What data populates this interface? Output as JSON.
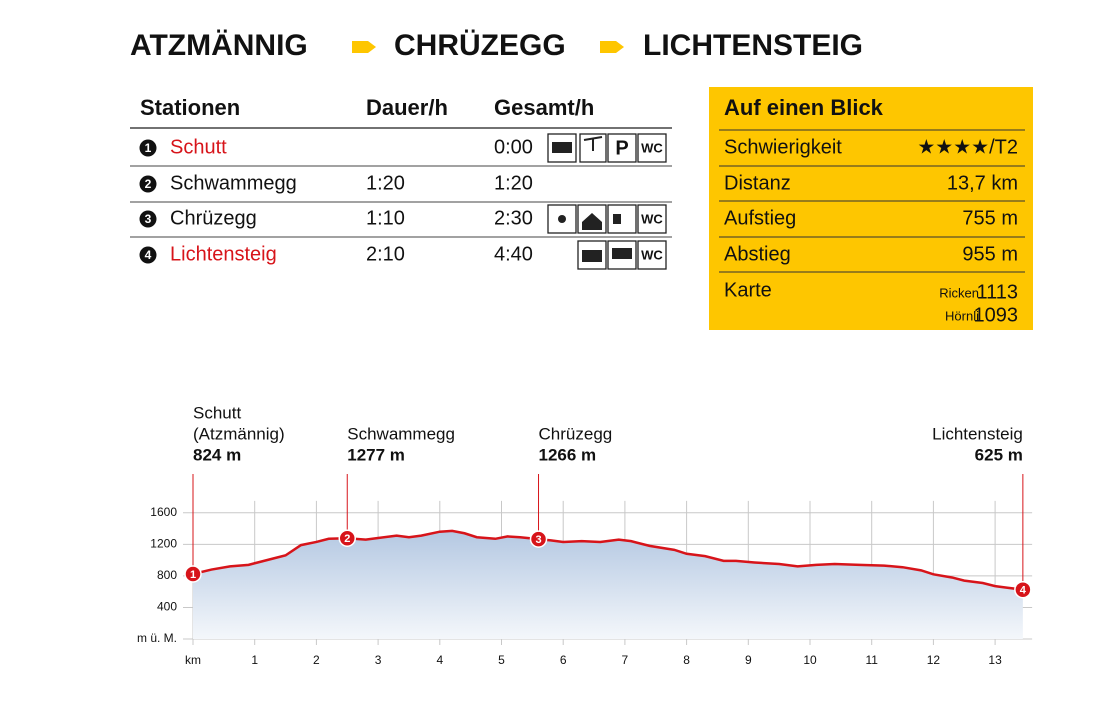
{
  "header": {
    "title_parts": [
      "ATZMÄNNIG",
      "CHRÜZEGG",
      "LICHTENSTEIG"
    ]
  },
  "table": {
    "columns": [
      "Stationen",
      "Dauer/h",
      "Gesamt/h"
    ],
    "rows": [
      {
        "number": "1",
        "name": "Schutt",
        "color": "#d7141a",
        "gesamt": "0:00",
        "icons": [
          "P",
          "WC"
        ]
      },
      {
        "number": "2",
        "name": "Schwammegg",
        "color": "#111111",
        "dauer": "1:20",
        "gesamt": "1:20"
      },
      {
        "number": "3",
        "name": "Chrüzegg",
        "color": "#111111",
        "dauer": "1:10",
        "gesamt": "2:30",
        "icons": [
          "WC"
        ]
      },
      {
        "number": "4",
        "name": "Lichtensteig",
        "color": "#d7141a",
        "dauer": "2:10",
        "gesamt": "4:40",
        "icons": [
          "WC"
        ]
      }
    ]
  },
  "glance": {
    "title": "Auf einen Blick",
    "color": "#fec600",
    "rows": [
      [
        "Schwierigkeit",
        "★★★★/T2"
      ],
      [
        "Distanz",
        "13,7 km"
      ],
      [
        "Aufstieg",
        "755 m"
      ],
      [
        "Abstieg",
        "955 m"
      ]
    ],
    "map": {
      "label": "Karte",
      "sheets": [
        [
          "Ricken",
          "1113"
        ],
        [
          "Hörnli",
          "1093"
        ]
      ]
    }
  },
  "chart_data": {
    "type": "line",
    "fill": "area",
    "color": "#d7141a",
    "grid": true,
    "x": [
      0,
      0.3,
      0.6,
      0.9,
      1.0,
      1.3,
      1.5,
      1.75,
      2.0,
      2.2,
      2.5,
      2.8,
      3.0,
      3.3,
      3.5,
      3.7,
      4.0,
      4.2,
      4.4,
      4.6,
      4.9,
      5.1,
      5.3,
      5.6,
      5.8,
      6.0,
      6.3,
      6.6,
      6.9,
      7.1,
      7.4,
      7.8,
      8.0,
      8.3,
      8.6,
      8.8,
      9.1,
      9.5,
      9.8,
      10.1,
      10.4,
      10.8,
      11.2,
      11.5,
      11.8,
      12.0,
      12.3,
      12.5,
      12.8,
      13.0,
      13.2,
      13.45
    ],
    "values": [
      824,
      880,
      920,
      940,
      960,
      1020,
      1060,
      1190,
      1230,
      1270,
      1277,
      1260,
      1280,
      1310,
      1290,
      1310,
      1360,
      1370,
      1340,
      1290,
      1270,
      1300,
      1290,
      1266,
      1250,
      1230,
      1240,
      1230,
      1260,
      1240,
      1180,
      1130,
      1080,
      1050,
      990,
      990,
      970,
      950,
      920,
      940,
      950,
      940,
      930,
      910,
      870,
      820,
      780,
      740,
      710,
      670,
      650,
      625
    ],
    "xlim": [
      0,
      13.6
    ],
    "ylim": [
      0,
      1750
    ],
    "xticks": [
      {
        "value": 0,
        "label": "km"
      },
      1,
      2,
      3,
      4,
      5,
      6,
      7,
      8,
      9,
      10,
      11,
      12,
      13
    ],
    "yticks": [
      {
        "value": 0,
        "label": "m ü. M."
      },
      400,
      800,
      1200,
      1600
    ],
    "stations": [
      {
        "marker": "1",
        "name": "Schutt",
        "sub": "(Atzmännig)",
        "x": 0,
        "value": 824,
        "value_label": "824 m"
      },
      {
        "marker": "2",
        "name": "Schwammegg",
        "x": 2.5,
        "value": 1277,
        "value_label": "1277 m"
      },
      {
        "marker": "3",
        "name": "Chrüzegg",
        "x": 5.6,
        "value": 1266,
        "value_label": "1266 m"
      },
      {
        "marker": "4",
        "name": "Lichtensteig",
        "x": 13.45,
        "value": 625,
        "value_label": "625 m"
      }
    ]
  }
}
